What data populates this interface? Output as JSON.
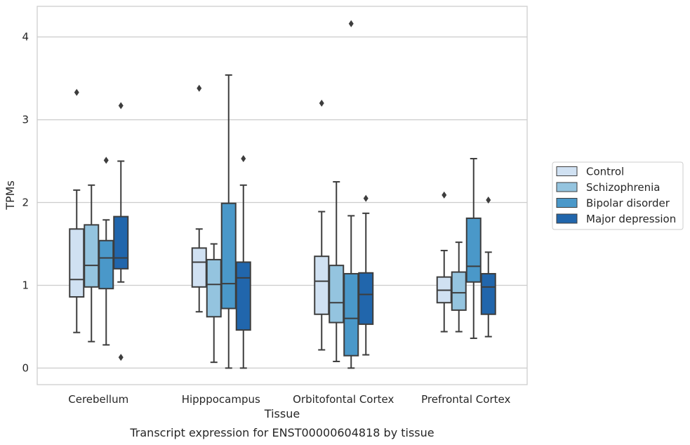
{
  "chart_data": {
    "type": "box",
    "caption": "Transcript expression for ENST00000604818 by tissue",
    "xlabel": "Tissue",
    "ylabel": "TPMs",
    "ylim": [
      -0.2,
      4.37
    ],
    "yticks": [
      0,
      1,
      2,
      3,
      4
    ],
    "grid": true,
    "legend_position": "right",
    "categories": [
      "Cerebellum",
      "Hipppocampus",
      "Orbitofontal Cortex",
      "Prefrontal Cortex"
    ],
    "series": [
      {
        "name": "Control",
        "color": "#d0e1f2",
        "boxes": [
          {
            "whislo": 0.43,
            "q1": 0.86,
            "med": 1.07,
            "q3": 1.68,
            "whishi": 2.15,
            "fliers": [
              3.33
            ]
          },
          {
            "whislo": 0.68,
            "q1": 0.98,
            "med": 1.28,
            "q3": 1.45,
            "whishi": 1.68,
            "fliers": [
              3.38
            ]
          },
          {
            "whislo": 0.22,
            "q1": 0.65,
            "med": 1.05,
            "q3": 1.35,
            "whishi": 1.89,
            "fliers": [
              3.2
            ]
          },
          {
            "whislo": 0.44,
            "q1": 0.79,
            "med": 0.94,
            "q3": 1.1,
            "whishi": 1.42,
            "fliers": [
              2.09
            ]
          }
        ]
      },
      {
        "name": "Schizophrenia",
        "color": "#94c4df",
        "boxes": [
          {
            "whislo": 0.32,
            "q1": 0.98,
            "med": 1.24,
            "q3": 1.73,
            "whishi": 2.21,
            "fliers": []
          },
          {
            "whislo": 0.07,
            "q1": 0.62,
            "med": 1.01,
            "q3": 1.31,
            "whishi": 1.5,
            "fliers": []
          },
          {
            "whislo": 0.08,
            "q1": 0.55,
            "med": 0.79,
            "q3": 1.24,
            "whishi": 2.25,
            "fliers": []
          },
          {
            "whislo": 0.44,
            "q1": 0.7,
            "med": 0.91,
            "q3": 1.16,
            "whishi": 1.52,
            "fliers": []
          }
        ]
      },
      {
        "name": "Bipolar disorder",
        "color": "#4a98c9",
        "boxes": [
          {
            "whislo": 0.28,
            "q1": 0.96,
            "med": 1.33,
            "q3": 1.54,
            "whishi": 1.79,
            "fliers": [
              2.51
            ]
          },
          {
            "whislo": 0.0,
            "q1": 0.72,
            "med": 1.02,
            "q3": 1.99,
            "whishi": 3.54,
            "fliers": []
          },
          {
            "whislo": 0.0,
            "q1": 0.15,
            "med": 0.6,
            "q3": 1.14,
            "whishi": 1.84,
            "fliers": [
              4.16
            ]
          },
          {
            "whislo": 0.36,
            "q1": 1.04,
            "med": 1.23,
            "q3": 1.81,
            "whishi": 2.53,
            "fliers": []
          }
        ]
      },
      {
        "name": "Major depression",
        "color": "#2166ac",
        "boxes": [
          {
            "whislo": 1.04,
            "q1": 1.2,
            "med": 1.33,
            "q3": 1.83,
            "whishi": 2.5,
            "fliers": [
              3.17,
              0.13
            ]
          },
          {
            "whislo": 0.0,
            "q1": 0.46,
            "med": 1.09,
            "q3": 1.28,
            "whishi": 2.21,
            "fliers": [
              2.53
            ]
          },
          {
            "whislo": 0.16,
            "q1": 0.53,
            "med": 0.89,
            "q3": 1.15,
            "whishi": 1.87,
            "fliers": [
              2.05
            ]
          },
          {
            "whislo": 0.38,
            "q1": 0.65,
            "med": 0.98,
            "q3": 1.14,
            "whishi": 1.4,
            "fliers": [
              2.03
            ]
          }
        ]
      }
    ]
  }
}
